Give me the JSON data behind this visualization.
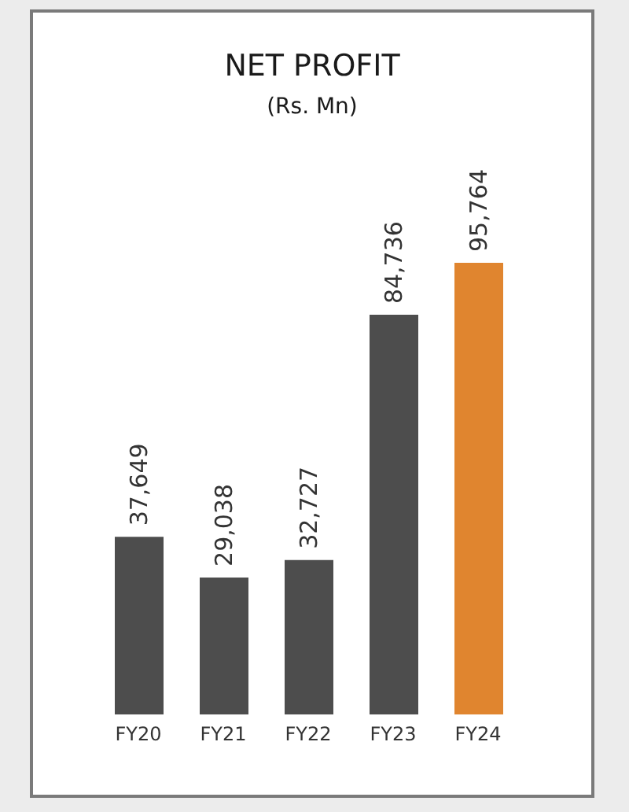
{
  "chart_data": {
    "type": "bar",
    "title": "NET PROFIT",
    "subtitle": "(Rs. Mn)",
    "categories": [
      "FY20",
      "FY21",
      "FY22",
      "FY23",
      "FY24"
    ],
    "values": [
      37649,
      29038,
      32727,
      84736,
      95764
    ],
    "value_labels": [
      "37,649",
      "29,038",
      "32,727",
      "84,736",
      "95,764"
    ],
    "colors": [
      "#4d4d4d",
      "#4d4d4d",
      "#4d4d4d",
      "#4d4d4d",
      "#e0852f"
    ]
  }
}
